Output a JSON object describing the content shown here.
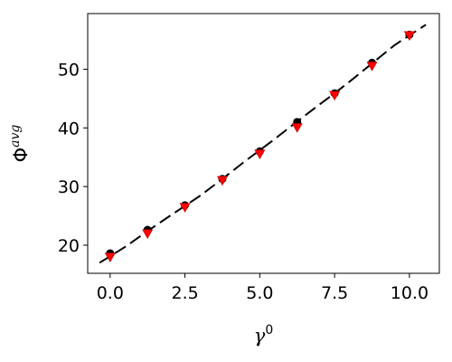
{
  "chart_data": {
    "type": "line",
    "title": "",
    "xlabel": "γ",
    "xlabel_superscript": "0",
    "ylabel": "Φ",
    "ylabel_superscript": "avg",
    "xlim": [
      -0.75,
      11.0
    ],
    "ylim": [
      15.2,
      59.5
    ],
    "xticks": [
      0.0,
      2.5,
      5.0,
      7.5,
      10.0
    ],
    "xtick_labels": [
      "0.0",
      "2.5",
      "5.0",
      "7.5",
      "10.0"
    ],
    "yticks": [
      20,
      30,
      40,
      50
    ],
    "ytick_labels": [
      "20",
      "30",
      "40",
      "50"
    ],
    "grid": false,
    "legend": "none",
    "series": [
      {
        "kind": "dashed-line",
        "color": "#000000",
        "x": [
          -0.35,
          0.5,
          1.25,
          2.0,
          2.5,
          3.0,
          3.75,
          4.5,
          5.0,
          5.5,
          6.25,
          7.0,
          7.5,
          8.0,
          8.75,
          9.5,
          10.0,
          10.55
        ],
        "y": [
          17.0,
          19.7,
          22.4,
          25.0,
          26.7,
          28.4,
          31.3,
          34.3,
          36.2,
          38.1,
          41.1,
          44.0,
          45.9,
          47.9,
          51.0,
          54.1,
          55.8,
          57.6
        ]
      },
      {
        "kind": "markers",
        "marker": "circle",
        "color": "#000000",
        "x": [
          0.0,
          1.25,
          2.5,
          3.75,
          5.0,
          6.25,
          7.5,
          8.75,
          10.0
        ],
        "y": [
          18.6,
          22.6,
          26.8,
          31.3,
          36.0,
          41.0,
          45.9,
          51.1,
          55.9
        ]
      },
      {
        "kind": "markers",
        "marker": "triangle-down",
        "color": "#ff0000",
        "x": [
          0.0,
          1.25,
          2.5,
          3.75,
          5.0,
          6.25,
          7.5,
          8.75,
          10.0
        ],
        "y": [
          18.0,
          22.0,
          26.5,
          31.1,
          35.6,
          40.1,
          45.6,
          50.6,
          55.8
        ]
      }
    ]
  }
}
